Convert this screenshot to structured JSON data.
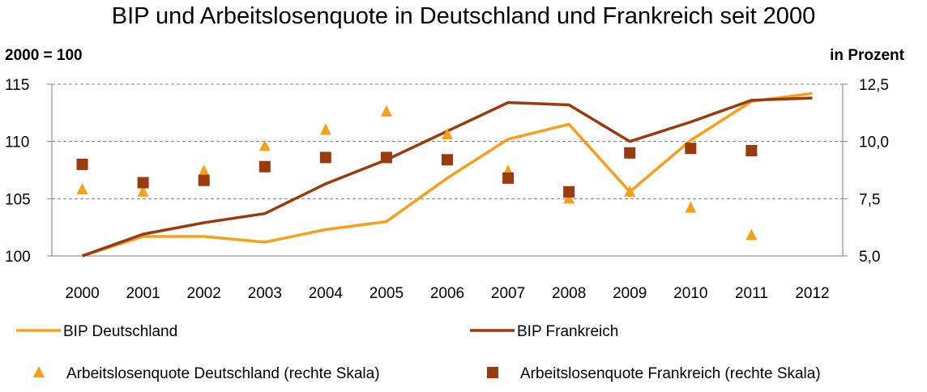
{
  "chart_data": {
    "type": "line",
    "title": "BIP und Arbeitslosenquote in Deutschland und Frankreich seit 2000",
    "left_axis_label": "2000 = 100",
    "right_axis_label": "in Prozent",
    "categories": [
      "2000",
      "2001",
      "2002",
      "2003",
      "2004",
      "2005",
      "2006",
      "2007",
      "2008",
      "2009",
      "2010",
      "2011",
      "2012"
    ],
    "ylim_left": [
      100,
      115
    ],
    "yticks_left": [
      "100",
      "105",
      "110",
      "115"
    ],
    "ylim_right": [
      5.0,
      12.5
    ],
    "yticks_right": [
      "5,0",
      "7,5",
      "10,0",
      "12,5"
    ],
    "grid": true,
    "series": [
      {
        "name": "BIP Deutschland",
        "kind": "line",
        "axis": "left",
        "color": "#F7A01A",
        "values": [
          100.0,
          101.7,
          101.7,
          101.2,
          102.3,
          103.0,
          106.8,
          110.2,
          111.5,
          105.6,
          110.1,
          113.5,
          114.2
        ]
      },
      {
        "name": "BIP Frankreich",
        "kind": "line",
        "axis": "left",
        "color": "#9B3A0C",
        "values": [
          100.0,
          101.9,
          102.9,
          103.7,
          106.3,
          108.4,
          110.9,
          113.4,
          113.2,
          110.0,
          111.7,
          113.6,
          113.8
        ]
      },
      {
        "name": "Arbeitslosenquote Deutschland (rechte Skala)",
        "kind": "triangle",
        "axis": "right",
        "color": "#F7A01A",
        "values": [
          7.9,
          7.8,
          8.7,
          9.8,
          10.5,
          11.3,
          10.3,
          8.7,
          7.5,
          7.8,
          7.1,
          5.9,
          null
        ]
      },
      {
        "name": "Arbeitslosenquote Frankreich (rechte Skala)",
        "kind": "square",
        "axis": "right",
        "color": "#9B3A0C",
        "values": [
          9.0,
          8.2,
          8.3,
          8.9,
          9.3,
          9.3,
          9.2,
          8.4,
          7.8,
          9.5,
          9.7,
          9.6,
          null
        ]
      }
    ]
  }
}
